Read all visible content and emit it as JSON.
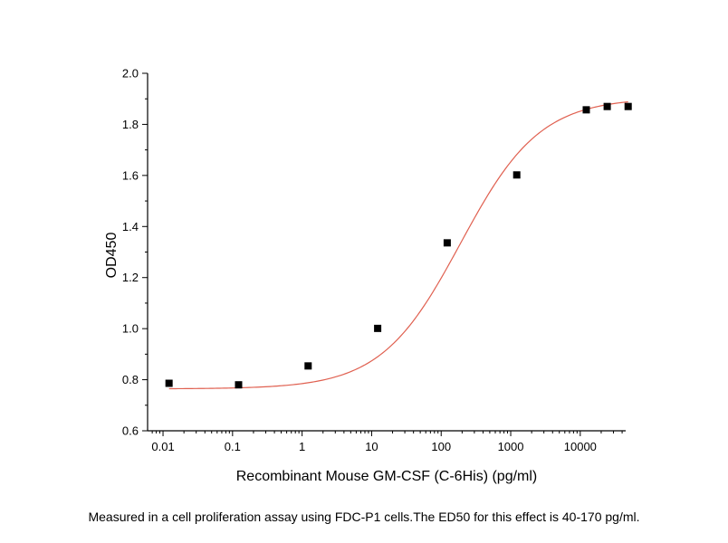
{
  "chart_data": {
    "type": "scatter",
    "title": "",
    "xlabel": "Recombinant Mouse GM-CSF (C-6His) (pg/ml)",
    "ylabel": "OD450",
    "x_scale": "log",
    "xlim": [
      0.006,
      45000
    ],
    "ylim": [
      0.6,
      2.0
    ],
    "x_ticks": [
      0.01,
      0.1,
      1,
      10,
      100,
      1000,
      10000
    ],
    "x_tick_labels": [
      "0.01",
      "0.1",
      "1",
      "10",
      "100",
      "1000",
      "10000"
    ],
    "y_ticks": [
      0.6,
      0.8,
      1.0,
      1.2,
      1.4,
      1.6,
      1.8,
      2.0
    ],
    "y_tick_labels": [
      "0.6",
      "0.8",
      "1.0",
      "1.2",
      "1.4",
      "1.6",
      "1.8",
      "2.0"
    ],
    "grid": false,
    "legend": "none",
    "series": [
      {
        "type": "scatter",
        "marker": "square",
        "color": "#000000",
        "x": [
          0.0122,
          0.1221,
          1.221,
          12.21,
          122.1,
          1221,
          12210,
          24410,
          48830
        ],
        "y": [
          0.786,
          0.78,
          0.854,
          1.001,
          1.336,
          1.602,
          1.857,
          1.87,
          1.87
        ]
      },
      {
        "type": "line",
        "fit": "four-parameter logistic",
        "color": "#e06050",
        "bottom": 0.764,
        "top": 1.905,
        "ec50": 190,
        "hill_slope": 0.76
      }
    ]
  },
  "caption": "Measured in a cell proliferation assay using FDC-P1 cells.The ED50 for this effect is 40-170 pg/ml."
}
